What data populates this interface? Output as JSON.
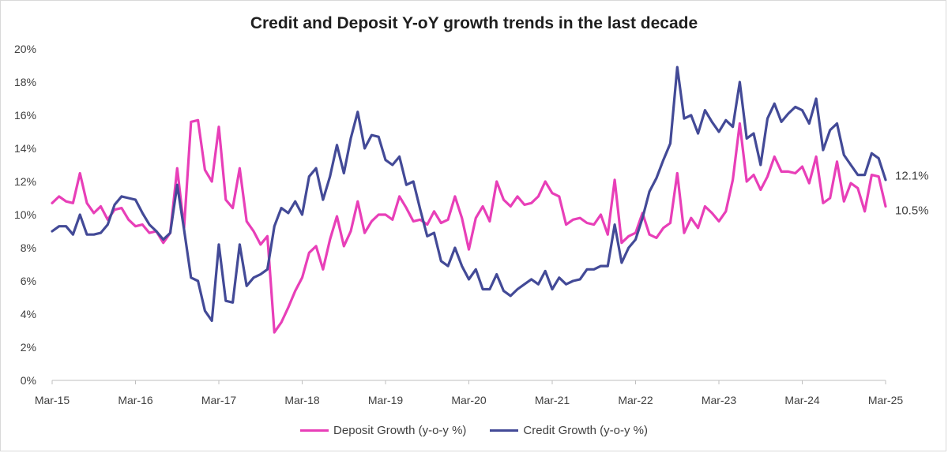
{
  "chart_data": {
    "type": "line",
    "title": "Credit and Deposit Y-oY growth trends in the last decade",
    "xlabel": "",
    "ylabel": "",
    "ylim": [
      0,
      20
    ],
    "yticks": [
      "0%",
      "2%",
      "4%",
      "6%",
      "8%",
      "10%",
      "12%",
      "14%",
      "16%",
      "18%",
      "20%"
    ],
    "xticks": [
      "Mar-15",
      "Mar-16",
      "Mar-17",
      "Mar-18",
      "Mar-19",
      "Mar-20",
      "Mar-21",
      "Mar-22",
      "Mar-23",
      "Mar-24",
      "Mar-25"
    ],
    "x_start": "Mar-15",
    "x_step": "biweekly",
    "grid": false,
    "legend_position": "bottom",
    "series": [
      {
        "name": "Deposit Growth (y-o-y %)",
        "color": "#e83fb8",
        "end_label": "10.5%",
        "values": [
          10.7,
          11.1,
          10.8,
          10.7,
          12.5,
          10.7,
          10.1,
          10.5,
          9.7,
          10.3,
          10.4,
          9.7,
          9.3,
          9.4,
          8.9,
          9.0,
          8.3,
          8.9,
          12.8,
          9.2,
          15.6,
          15.7,
          12.7,
          12.0,
          15.3,
          10.9,
          10.4,
          12.8,
          9.6,
          9.0,
          8.2,
          8.7,
          2.9,
          3.5,
          4.4,
          5.4,
          6.2,
          7.7,
          8.1,
          6.7,
          8.5,
          9.9,
          8.1,
          9.0,
          10.8,
          8.9,
          9.6,
          10.0,
          10.0,
          9.7,
          11.1,
          10.4,
          9.6,
          9.7,
          9.4,
          10.2,
          9.5,
          9.7,
          11.1,
          9.8,
          7.9,
          9.8,
          10.5,
          9.6,
          12.0,
          10.9,
          10.5,
          11.1,
          10.6,
          10.7,
          11.1,
          12.0,
          11.3,
          11.1,
          9.4,
          9.7,
          9.8,
          9.5,
          9.4,
          10.0,
          8.8,
          12.1,
          8.3,
          8.7,
          8.9,
          10.1,
          8.8,
          8.6,
          9.2,
          9.5,
          12.5,
          8.9,
          9.8,
          9.2,
          10.5,
          10.1,
          9.6,
          10.2,
          12.1,
          15.5,
          12.0,
          12.4,
          11.5,
          12.3,
          13.5,
          12.6,
          12.6,
          12.5,
          12.9,
          11.9,
          13.5,
          10.7,
          11.0,
          13.2,
          10.8,
          11.9,
          11.6,
          10.2,
          12.4,
          12.3,
          10.5
        ]
      },
      {
        "name": "Credit Growth (y-o-y %)",
        "color": "#434a97",
        "end_label": "12.1%",
        "values": [
          9.0,
          9.3,
          9.3,
          8.8,
          10.0,
          8.8,
          8.8,
          8.9,
          9.4,
          10.6,
          11.1,
          11.0,
          10.9,
          10.1,
          9.4,
          9.0,
          8.5,
          8.9,
          11.8,
          9.1,
          6.2,
          6.0,
          4.2,
          3.6,
          8.2,
          4.8,
          4.7,
          8.2,
          5.7,
          6.2,
          6.4,
          6.7,
          9.3,
          10.4,
          10.1,
          10.8,
          10.0,
          12.3,
          12.8,
          10.9,
          12.3,
          14.2,
          12.5,
          14.6,
          16.2,
          14.0,
          14.8,
          14.7,
          13.3,
          13.0,
          13.5,
          11.8,
          12.0,
          10.3,
          8.7,
          8.9,
          7.2,
          6.9,
          8.0,
          6.9,
          6.1,
          6.7,
          5.5,
          5.5,
          6.4,
          5.4,
          5.1,
          5.5,
          5.8,
          6.1,
          5.8,
          6.6,
          5.5,
          6.2,
          5.8,
          6.0,
          6.1,
          6.7,
          6.7,
          6.9,
          6.9,
          9.4,
          7.1,
          8.0,
          8.5,
          9.8,
          11.4,
          12.2,
          13.3,
          14.3,
          18.9,
          15.8,
          16.0,
          14.9,
          16.3,
          15.6,
          15.0,
          15.7,
          15.3,
          18.0,
          14.6,
          14.9,
          13.0,
          15.8,
          16.7,
          15.6,
          16.1,
          16.5,
          16.3,
          15.5,
          17.0,
          13.9,
          15.1,
          15.5,
          13.6,
          13.0,
          12.4,
          12.4,
          13.7,
          13.4,
          12.1
        ]
      }
    ]
  }
}
